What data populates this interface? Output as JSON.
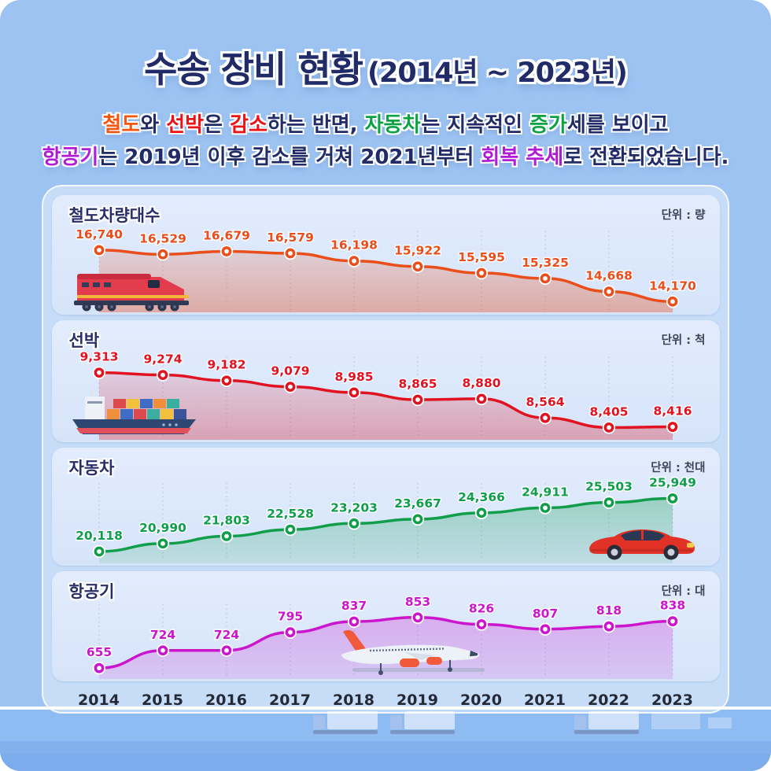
{
  "header": {
    "title_main": "수송 장비 현황",
    "title_range": "(2014년 ~ 2023년)",
    "subtitle": {
      "line1": [
        {
          "text": "철도",
          "color": "#f4560e"
        },
        {
          "text": "와 ",
          "color": ""
        },
        {
          "text": "선박",
          "color": "#ec1218"
        },
        {
          "text": "은 ",
          "color": ""
        },
        {
          "text": "감소",
          "color": "#ec1218"
        },
        {
          "text": "하는 반면, ",
          "color": ""
        },
        {
          "text": "자동차",
          "color": "#0ca244"
        },
        {
          "text": "는 지속적인 ",
          "color": ""
        },
        {
          "text": "증가",
          "color": "#0ca244"
        },
        {
          "text": "세를 보이고",
          "color": ""
        }
      ],
      "line2": [
        {
          "text": "항공기",
          "color": "#b01bd6"
        },
        {
          "text": "는 2019년 이후 감소를 거쳐 2021년부터 ",
          "color": ""
        },
        {
          "text": "회복 추세",
          "color": "#b01bd6"
        },
        {
          "text": "로 전환되었습니다.",
          "color": ""
        }
      ]
    }
  },
  "chart_data": [
    {
      "type": "line",
      "title": "철도차량대수",
      "unit_label": "단위 : 량",
      "color": "#e94e1b",
      "categories": [
        "2014",
        "2015",
        "2016",
        "2017",
        "2018",
        "2019",
        "2020",
        "2021",
        "2022",
        "2023"
      ],
      "values": [
        16740,
        16529,
        16679,
        16579,
        16198,
        15922,
        15595,
        15325,
        14668,
        14170
      ],
      "value_labels": [
        "16,740",
        "16,529",
        "16,679",
        "16,579",
        "16,198",
        "15,922",
        "15,595",
        "15,325",
        "14,668",
        "14,170"
      ],
      "ylim": [
        14170,
        16740
      ],
      "grid": "vertical-dotted",
      "legend": "none",
      "illustration": "train"
    },
    {
      "type": "line",
      "title": "선박",
      "unit_label": "단위 : 척",
      "color": "#e21320",
      "categories": [
        "2014",
        "2015",
        "2016",
        "2017",
        "2018",
        "2019",
        "2020",
        "2021",
        "2022",
        "2023"
      ],
      "values": [
        9313,
        9274,
        9182,
        9079,
        8985,
        8865,
        8880,
        8564,
        8405,
        8416
      ],
      "value_labels": [
        "9,313",
        "9,274",
        "9,182",
        "9,079",
        "8,985",
        "8,865",
        "8,880",
        "8,564",
        "8,405",
        "8,416"
      ],
      "ylim": [
        8405,
        9313
      ],
      "grid": "vertical-dotted",
      "legend": "none",
      "illustration": "ship"
    },
    {
      "type": "line",
      "title": "자동차",
      "unit_label": "단위 : 천대",
      "color": "#119e4b",
      "categories": [
        "2014",
        "2015",
        "2016",
        "2017",
        "2018",
        "2019",
        "2020",
        "2021",
        "2022",
        "2023"
      ],
      "values": [
        20118,
        20990,
        21803,
        22528,
        23203,
        23667,
        24366,
        24911,
        25503,
        25949
      ],
      "value_labels": [
        "20,118",
        "20,990",
        "21,803",
        "22,528",
        "23,203",
        "23,667",
        "24,366",
        "24,911",
        "25,503",
        "25,949"
      ],
      "ylim": [
        20118,
        25949
      ],
      "grid": "vertical-dotted",
      "legend": "none",
      "illustration": "car"
    },
    {
      "type": "line",
      "title": "항공기",
      "unit_label": "단위 : 대",
      "color": "#cb16ce",
      "categories": [
        "2014",
        "2015",
        "2016",
        "2017",
        "2018",
        "2019",
        "2020",
        "2021",
        "2022",
        "2023"
      ],
      "values": [
        655,
        724,
        724,
        795,
        837,
        853,
        826,
        807,
        818,
        838
      ],
      "value_labels": [
        "655",
        "724",
        "724",
        "795",
        "837",
        "853",
        "826",
        "807",
        "818",
        "838"
      ],
      "ylim": [
        655,
        853
      ],
      "grid": "vertical-dotted",
      "legend": "none",
      "illustration": "airplane"
    }
  ],
  "x_axis": {
    "years": [
      "2014",
      "2015",
      "2016",
      "2017",
      "2018",
      "2019",
      "2020",
      "2021",
      "2022",
      "2023"
    ]
  }
}
